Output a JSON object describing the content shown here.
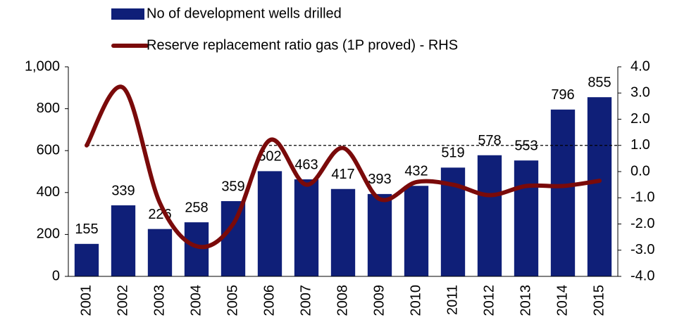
{
  "chart_data": {
    "type": "bar_line",
    "categories": [
      "2001",
      "2002",
      "2003",
      "2004",
      "2005",
      "2006",
      "2007",
      "2008",
      "2009",
      "2010",
      "2011",
      "2012",
      "2013",
      "2014",
      "2015"
    ],
    "series": [
      {
        "name": "No of development wells drilled",
        "type": "bar",
        "color": "#0f1f78",
        "values": [
          155,
          339,
          226,
          258,
          359,
          502,
          463,
          417,
          393,
          432,
          519,
          578,
          553,
          796,
          855
        ]
      },
      {
        "name": "Reserve replacement ratio gas (1P proved) - RHS",
        "type": "line",
        "axis": "y2",
        "color": "#7a0a0a",
        "values": [
          1.0,
          3.2,
          -1.2,
          -2.85,
          -2.0,
          1.2,
          -0.5,
          0.9,
          -1.05,
          -0.4,
          -0.5,
          -0.9,
          -0.55,
          -0.55,
          -0.35
        ]
      }
    ],
    "ylim": [
      0,
      1000
    ],
    "yticks": [
      0,
      200,
      400,
      600,
      800,
      {
        "value": 1000,
        "label": "1,000"
      }
    ],
    "y2lim": [
      -4,
      4
    ],
    "y2ticks": [
      {
        "value": -4,
        "label": "-4.0"
      },
      {
        "value": -3,
        "label": "-3.0"
      },
      {
        "value": -2,
        "label": "-2.0"
      },
      {
        "value": -1,
        "label": "-1.0"
      },
      {
        "value": 0,
        "label": "0.0"
      },
      {
        "value": 1,
        "label": "1.0"
      },
      {
        "value": 2,
        "label": "2.0"
      },
      {
        "value": 3,
        "label": "3.0"
      },
      {
        "value": 4,
        "label": "4.0"
      }
    ],
    "reference_line": 1,
    "grid": false
  }
}
